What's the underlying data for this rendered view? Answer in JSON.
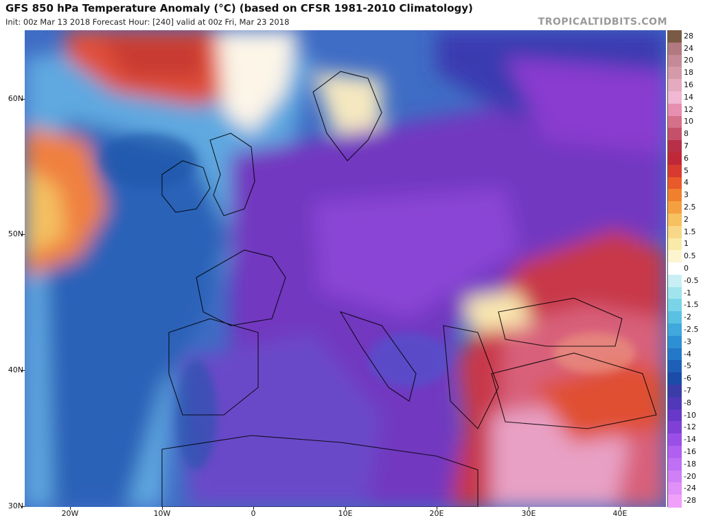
{
  "header": {
    "title": "GFS 850 hPa Temperature Anomaly (°C) (based on CFSR 1981-2010 Climatology)",
    "subtitle": "Init: 00z Mar 13 2018   Forecast Hour: [240]   valid at 00z Fri, Mar 23 2018",
    "brand": "TROPICALTIDBITS.COM"
  },
  "axes": {
    "lat_labels": [
      "60N",
      "50N",
      "40N",
      "30N"
    ],
    "lon_labels": [
      "20W",
      "10W",
      "0",
      "10E",
      "20E",
      "30E",
      "40E"
    ]
  },
  "colorbar": {
    "labels": [
      "28",
      "24",
      "20",
      "18",
      "16",
      "14",
      "12",
      "10",
      "8",
      "7",
      "6",
      "5",
      "4",
      "3",
      "2.5",
      "2",
      "1.5",
      "1",
      "0.5",
      "0",
      "-0.5",
      "-1",
      "-1.5",
      "-2",
      "-2.5",
      "-3",
      "-4",
      "-5",
      "-6",
      "-7",
      "-8",
      "-10",
      "-12",
      "-14",
      "-16",
      "-18",
      "-20",
      "-24",
      "-28"
    ],
    "colors": [
      "#7a5a45",
      "#b07a80",
      "#c48a98",
      "#d49aaa",
      "#e3aac0",
      "#f0b8d2",
      "#e68fb0",
      "#d5708a",
      "#c5506a",
      "#b83048",
      "#c02838",
      "#d83a30",
      "#e85a2a",
      "#f0802e",
      "#f5a040",
      "#f7c060",
      "#f8d888",
      "#faeaa8",
      "#fcf5d0",
      "#ffffff",
      "#c8f0f4",
      "#a0e4ee",
      "#7ad4e8",
      "#5ac0e4",
      "#40a8dc",
      "#2e90d4",
      "#2478c8",
      "#1e60b8",
      "#1a4ca8",
      "#3a3ca8",
      "#5038b8",
      "#6838c8",
      "#8040d8",
      "#9a50e8",
      "#b060f0",
      "#c070f4",
      "#d080f6",
      "#e090f8",
      "#f0a0fa"
    ],
    "unit_hint": "temperature anomaly (°C)"
  },
  "map": {
    "region": "Europe, North Atlantic, North Africa, Middle East",
    "extent": {
      "lon_min": -25,
      "lon_max": 45,
      "lat_min": 30,
      "lat_max": 65
    }
  }
}
